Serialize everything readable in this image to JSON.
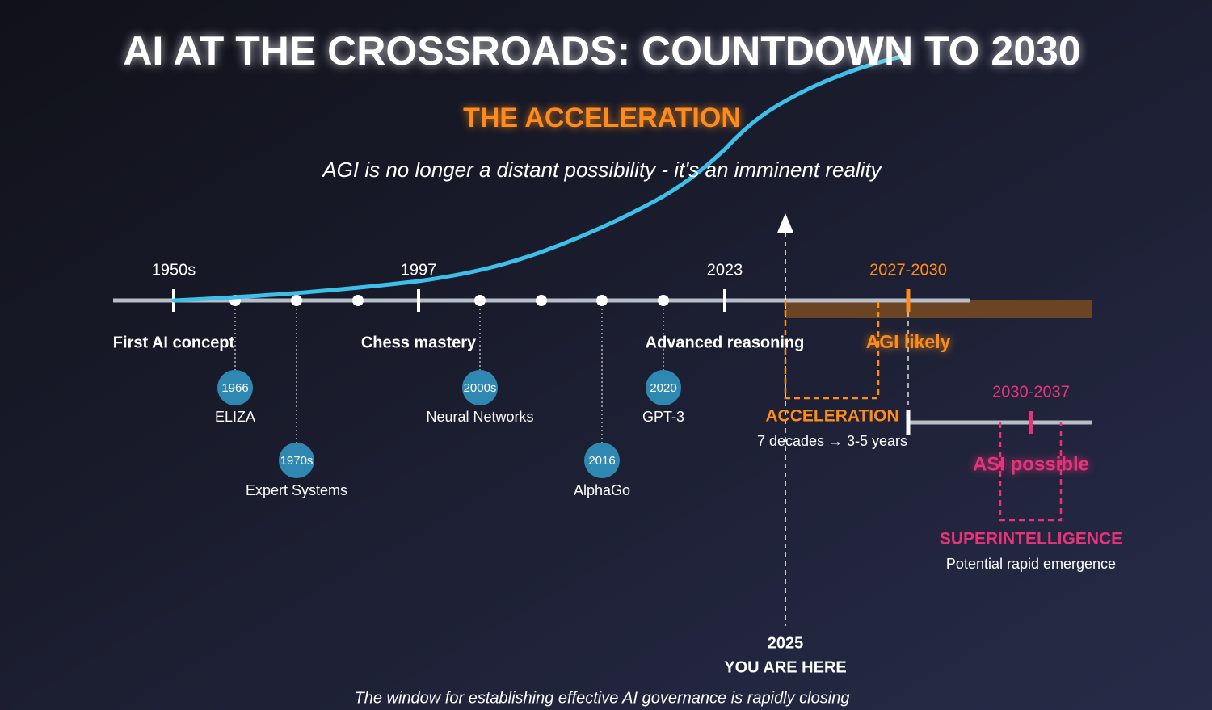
{
  "title": "AI AT THE CROSSROADS: COUNTDOWN TO 2030",
  "subtitle": "THE ACCELERATION",
  "tagline": "AGI is no longer a distant possibility - it's an imminent reality",
  "timeline": {
    "ticks": [
      "1950s",
      "1997",
      "2023",
      "2027-2030"
    ],
    "labels": [
      "First AI concept",
      "Chess mastery",
      "Advanced reasoning",
      "AGI likely"
    ]
  },
  "milestones": [
    {
      "year": "1966",
      "label": "ELIZA"
    },
    {
      "year": "1970s",
      "label": "Expert Systems"
    },
    {
      "year": "2000s",
      "label": "Neural Networks"
    },
    {
      "year": "2016",
      "label": "AlphaGo"
    },
    {
      "year": "2020",
      "label": "GPT-3"
    }
  ],
  "acceleration": {
    "title": "ACCELERATION",
    "note": "7 decades → 3-5 years"
  },
  "superintelligence": {
    "range": "2030-2037",
    "label": "ASI possible",
    "title": "SUPERINTELLIGENCE",
    "note": "Potential rapid emergence"
  },
  "now": {
    "year": "2025",
    "label": "YOU ARE HERE"
  },
  "footer": "The window for establishing effective AI governance is rapidly closing"
}
